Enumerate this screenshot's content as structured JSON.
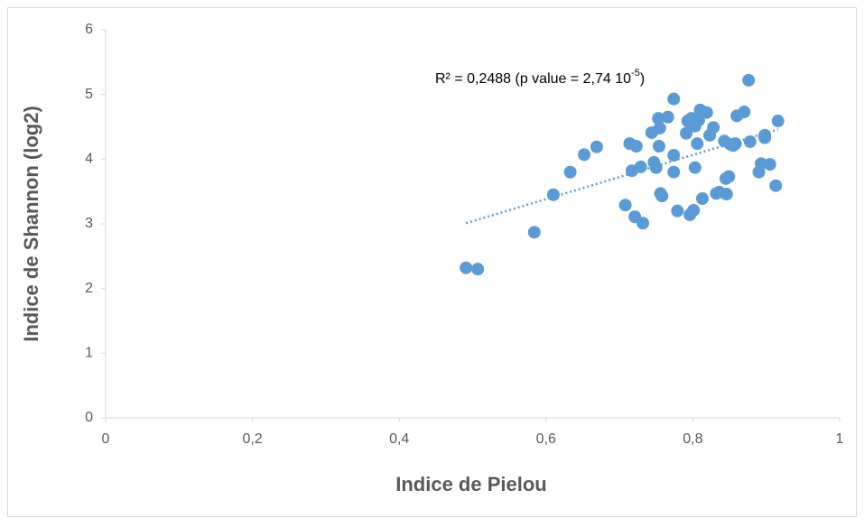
{
  "chart_data": {
    "type": "scatter",
    "xlabel": "Indice de Pielou",
    "ylabel": "Indice de Shannon (log2)",
    "annotation": {
      "text": "R² = 0,2488 (p value = 2,74 10",
      "superscript": "-5",
      "suffix": ")"
    },
    "color": "#5b9bd5",
    "xlim": [
      0,
      1
    ],
    "xticks": [
      0,
      {
        "value": 0.2,
        "label": "0,2"
      },
      {
        "value": 0.4,
        "label": "0,4"
      },
      {
        "value": 0.6,
        "label": "0,6"
      },
      {
        "value": 0.8,
        "label": "0,8"
      },
      1
    ],
    "ylim": [
      0,
      6
    ],
    "yticks": [
      0,
      1,
      2,
      3,
      4,
      5,
      6
    ],
    "x": [
      0.491,
      0.507,
      0.584,
      0.61,
      0.633,
      0.652,
      0.669,
      0.708,
      0.714,
      0.717,
      0.721,
      0.723,
      0.729,
      0.732,
      0.744,
      0.747,
      0.75,
      0.753,
      0.754,
      0.755,
      0.756,
      0.758,
      0.766,
      0.774,
      0.774,
      0.774,
      0.779,
      0.791,
      0.793,
      0.796,
      0.798,
      0.801,
      0.803,
      0.803,
      0.806,
      0.808,
      0.81,
      0.813,
      0.819,
      0.823,
      0.828,
      0.832,
      0.836,
      0.843,
      0.845,
      0.846,
      0.849,
      0.851,
      0.855,
      0.858,
      0.86,
      0.87,
      0.876,
      0.878,
      0.89,
      0.893,
      0.898,
      0.898,
      0.905,
      0.913,
      0.916
    ],
    "values": [
      2.32,
      2.3,
      2.87,
      3.45,
      3.8,
      4.07,
      4.19,
      3.29,
      4.24,
      3.82,
      3.11,
      4.2,
      3.88,
      3.01,
      4.41,
      3.95,
      3.87,
      4.63,
      4.2,
      4.48,
      3.47,
      3.43,
      4.65,
      4.93,
      4.06,
      3.8,
      3.2,
      4.4,
      4.59,
      3.14,
      4.63,
      3.21,
      3.87,
      4.51,
      4.24,
      4.6,
      4.76,
      3.39,
      4.72,
      4.37,
      4.49,
      3.47,
      3.49,
      4.28,
      3.7,
      3.46,
      3.73,
      4.23,
      4.21,
      4.24,
      4.67,
      4.73,
      5.22,
      4.27,
      3.8,
      3.93,
      4.37,
      4.33,
      3.92,
      3.59,
      4.59
    ],
    "trendline": {
      "x": [
        0.491,
        0.916
      ],
      "values": [
        3.01,
        4.46
      ]
    }
  }
}
